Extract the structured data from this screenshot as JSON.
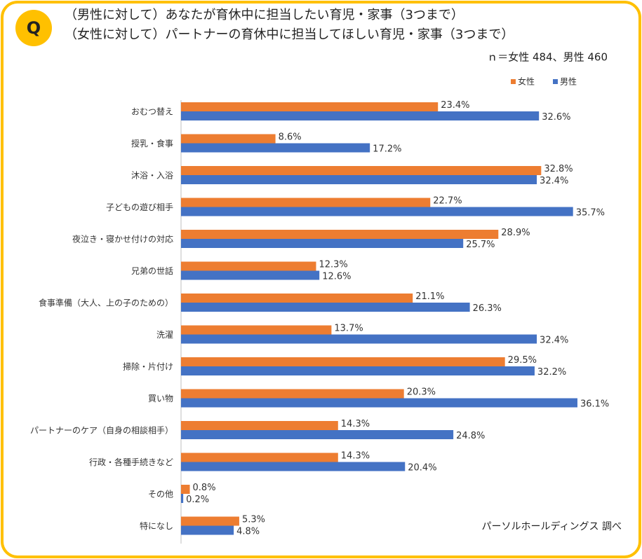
{
  "chart_data": {
    "type": "bar",
    "orientation": "horizontal",
    "badge": "Q",
    "title": "（男性に対して）あなたが育休中に担当したい育児・家事（3つまで）",
    "subtitle": "（女性に対して）パートナーの育休中に担当してほしい育児・家事（3つまで）",
    "note": "ｎ＝女性 484、男性 460",
    "source": "パーソルホールディングス 調べ",
    "legend": "top-right",
    "categories": [
      "おむつ替え",
      "授乳・食事",
      "沐浴・入浴",
      "子どもの遊び相手",
      "夜泣き・寝かせ付けの対応",
      "兄弟の世話",
      "食事準備（大人、上の子のための）",
      "洗濯",
      "掃除・片付け",
      "買い物",
      "パートナーのケア（自身の相談相手）",
      "行政・各種手続きなど",
      "その他",
      "特になし"
    ],
    "series": [
      {
        "name": "女性",
        "color": "#ed7d31",
        "values": [
          23.4,
          8.6,
          32.8,
          22.7,
          28.9,
          12.3,
          21.1,
          13.7,
          29.5,
          20.3,
          14.3,
          14.3,
          0.8,
          5.3
        ],
        "value_labels": [
          "23.4%",
          "8.6%",
          "32.8%",
          "22.7%",
          "28.9%",
          "12.3%",
          "21.1%",
          "13.7%",
          "29.5%",
          "20.3%",
          "14.3%",
          "14.3%",
          "0.8%",
          "5.3%"
        ]
      },
      {
        "name": "男性",
        "color": "#4472c4",
        "values": [
          32.6,
          17.2,
          32.4,
          35.7,
          25.7,
          12.6,
          26.3,
          32.4,
          32.2,
          36.1,
          24.8,
          20.4,
          0.2,
          4.8
        ],
        "value_labels": [
          "32.6%",
          "17.2%",
          "32.4%",
          "35.7%",
          "25.7%",
          "12.6%",
          "26.3%",
          "32.4%",
          "32.2%",
          "36.1%",
          "24.8%",
          "20.4%",
          "0.2%",
          "4.8%"
        ]
      }
    ],
    "xlim": [
      0,
      40
    ]
  }
}
